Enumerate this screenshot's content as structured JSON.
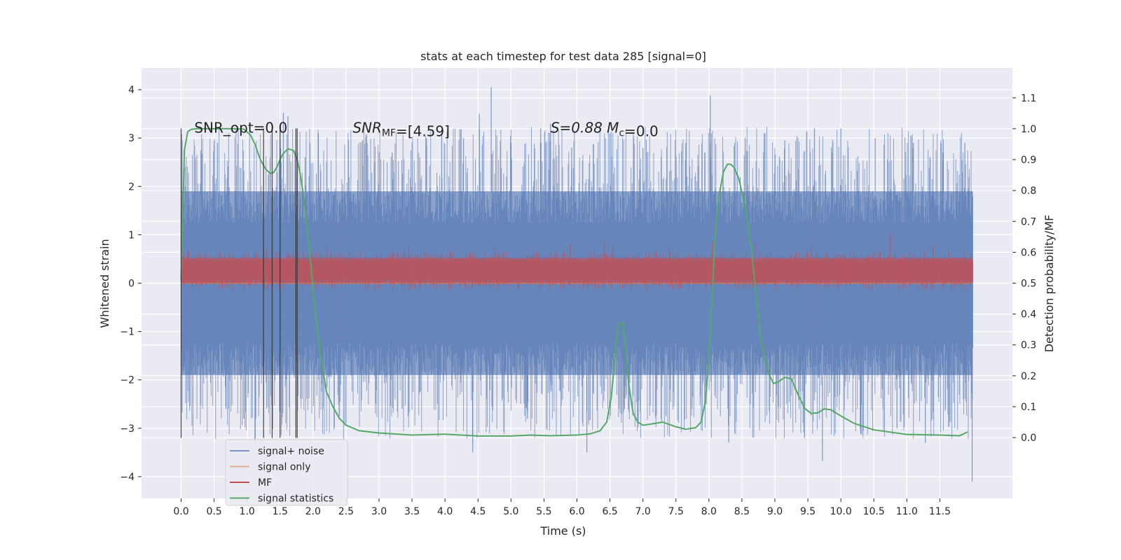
{
  "chart_data": {
    "type": "line",
    "title": "stats at each timestep for test data 285 [signal=0]",
    "xlabel": "Time (s)",
    "ylabel_left": "Whitened strain",
    "ylabel_right": "Detection probability/MF",
    "xlim": [
      -0.6,
      12.6
    ],
    "ylim_left": [
      -4.45,
      4.45
    ],
    "ylim_right": [
      -0.197,
      1.197
    ],
    "x_ticks": [
      0.0,
      0.5,
      1.0,
      1.5,
      2.0,
      2.5,
      3.0,
      3.5,
      4.0,
      4.5,
      5.0,
      5.5,
      6.0,
      6.5,
      7.0,
      7.5,
      8.0,
      8.5,
      9.0,
      9.5,
      10.0,
      10.5,
      11.0,
      11.5
    ],
    "x_tick_labels": [
      "0.0",
      "0.5",
      "1.0",
      "1.5",
      "2.0",
      "2.5",
      "3.0",
      "3.5",
      "4.0",
      "4.5",
      "5.0",
      "5.5",
      "6.0",
      "6.5",
      "7.0",
      "7.5",
      "8.0",
      "8.5",
      "9.0",
      "9.5",
      "10.0",
      "10.5",
      "11.0",
      "11.5"
    ],
    "y_left_ticks": [
      -4,
      -3,
      -2,
      -1,
      0,
      1,
      2,
      3,
      4
    ],
    "y_left_tick_labels": [
      "−4",
      "−3",
      "−2",
      "−1",
      "0",
      "1",
      "2",
      "3",
      "4"
    ],
    "y_right_ticks": [
      0.0,
      0.1,
      0.2,
      0.3,
      0.4,
      0.5,
      0.6,
      0.7,
      0.8,
      0.9,
      1.0,
      1.1
    ],
    "y_right_tick_labels": [
      "0.0",
      "0.1",
      "0.2",
      "0.3",
      "0.4",
      "0.5",
      "0.6",
      "0.7",
      "0.8",
      "0.9",
      "1.0",
      "1.1"
    ],
    "grid": true,
    "legend_position": "lower-left",
    "annotations": [
      {
        "text": "SNR_opt=0.0",
        "x": 0.2,
        "y": 3.2
      },
      {
        "text": "SNR_MF=[4.59]",
        "x": 2.6,
        "y": 3.2
      },
      {
        "text": "S=0.88  M_c=0.0",
        "x": 5.6,
        "y": 3.2
      }
    ],
    "vertical_markers": [
      {
        "x": 0.0,
        "y_range": [
          -3.2,
          3.2
        ]
      },
      {
        "x": 1.25,
        "y_range": [
          -3.2,
          3.2
        ]
      },
      {
        "x": 1.38,
        "y_range": [
          -3.2,
          3.2
        ]
      },
      {
        "x": 1.5,
        "y_range": [
          -3.2,
          3.2
        ]
      },
      {
        "x": 1.74,
        "y_range": [
          -3.2,
          3.2
        ]
      },
      {
        "x": 1.76,
        "y_range": [
          -3.2,
          3.2
        ]
      }
    ],
    "series": [
      {
        "name": "signal+ noise",
        "color": "#4c72b0",
        "axis": "left",
        "x_start": 0.0,
        "x_end": 12.0,
        "band_low": -1.9,
        "band_high": 1.9,
        "peaks": [
          {
            "x": 0.06,
            "y": 2.0
          },
          {
            "x": 0.3,
            "y": 2.75
          },
          {
            "x": 0.55,
            "y": 2.9
          },
          {
            "x": 0.68,
            "y": -2.6
          },
          {
            "x": 0.95,
            "y": -2.8
          },
          {
            "x": 1.12,
            "y": -3.3
          },
          {
            "x": 1.55,
            "y": 3.52
          },
          {
            "x": 1.62,
            "y": 3.45
          },
          {
            "x": 1.88,
            "y": 2.6
          },
          {
            "x": 2.08,
            "y": 3.1
          },
          {
            "x": 2.5,
            "y": -2.9
          },
          {
            "x": 2.75,
            "y": 2.95
          },
          {
            "x": 3.2,
            "y": 2.7
          },
          {
            "x": 3.35,
            "y": -2.6
          },
          {
            "x": 3.72,
            "y": 3.0
          },
          {
            "x": 3.95,
            "y": 3.1
          },
          {
            "x": 4.28,
            "y": 3.0
          },
          {
            "x": 4.42,
            "y": -3.5
          },
          {
            "x": 4.52,
            "y": 3.5
          },
          {
            "x": 4.7,
            "y": 4.05
          },
          {
            "x": 5.0,
            "y": 2.9
          },
          {
            "x": 5.25,
            "y": -2.8
          },
          {
            "x": 5.45,
            "y": 3.2
          },
          {
            "x": 5.6,
            "y": 3.3
          },
          {
            "x": 5.92,
            "y": 2.8
          },
          {
            "x": 6.15,
            "y": -3.5
          },
          {
            "x": 6.5,
            "y": 3.1
          },
          {
            "x": 6.72,
            "y": -2.6
          },
          {
            "x": 7.0,
            "y": 2.8
          },
          {
            "x": 7.35,
            "y": -2.75
          },
          {
            "x": 7.65,
            "y": 2.9
          },
          {
            "x": 8.02,
            "y": 3.88
          },
          {
            "x": 8.3,
            "y": -3.3
          },
          {
            "x": 8.55,
            "y": 3.0
          },
          {
            "x": 8.85,
            "y": 3.1
          },
          {
            "x": 9.15,
            "y": 2.95
          },
          {
            "x": 9.45,
            "y": -3.2
          },
          {
            "x": 9.6,
            "y": 3.2
          },
          {
            "x": 9.72,
            "y": -3.68
          },
          {
            "x": 10.0,
            "y": 3.2
          },
          {
            "x": 10.3,
            "y": -3.1
          },
          {
            "x": 10.52,
            "y": 3.0
          },
          {
            "x": 10.85,
            "y": -3.0
          },
          {
            "x": 11.1,
            "y": 2.9
          },
          {
            "x": 11.28,
            "y": -3.3
          },
          {
            "x": 11.55,
            "y": 2.7
          },
          {
            "x": 11.88,
            "y": 2.9
          },
          {
            "x": 11.99,
            "y": -4.1
          }
        ]
      },
      {
        "name": "signal only",
        "color": "#dd8452",
        "axis": "left",
        "x": [
          0.0,
          12.0
        ],
        "y": [
          0.0,
          0.0
        ]
      },
      {
        "name": "MF",
        "color": "#c44e52",
        "axis": "left",
        "x_start": 0.0,
        "x_end": 12.0,
        "band_low": 0.0,
        "band_high": 0.52,
        "peaks": [
          {
            "x": 0.1,
            "y": 0.68
          },
          {
            "x": 0.6,
            "y": 0.65
          },
          {
            "x": 1.3,
            "y": 0.7
          },
          {
            "x": 2.2,
            "y": 0.72
          },
          {
            "x": 3.45,
            "y": 0.75
          },
          {
            "x": 4.75,
            "y": 0.72
          },
          {
            "x": 5.9,
            "y": 0.82
          },
          {
            "x": 6.42,
            "y": 0.84
          },
          {
            "x": 6.55,
            "y": 0.78
          },
          {
            "x": 7.4,
            "y": 0.73
          },
          {
            "x": 8.05,
            "y": 0.85
          },
          {
            "x": 8.7,
            "y": 0.82
          },
          {
            "x": 9.55,
            "y": 0.74
          },
          {
            "x": 10.75,
            "y": 1.02
          },
          {
            "x": 11.4,
            "y": 0.78
          }
        ]
      },
      {
        "name": "signal statistics",
        "color": "#55a868",
        "axis": "right",
        "x": [
          0.0,
          0.05,
          0.1,
          0.15,
          0.25,
          0.4,
          0.6,
          0.8,
          0.95,
          1.05,
          1.12,
          1.2,
          1.28,
          1.35,
          1.4,
          1.45,
          1.5,
          1.55,
          1.62,
          1.7,
          1.76,
          1.8,
          1.85,
          1.9,
          1.95,
          2.0,
          2.05,
          2.1,
          2.15,
          2.2,
          2.3,
          2.4,
          2.5,
          2.7,
          3.0,
          3.5,
          4.0,
          4.5,
          5.0,
          5.3,
          5.6,
          6.0,
          6.2,
          6.35,
          6.45,
          6.52,
          6.58,
          6.62,
          6.65,
          6.7,
          6.73,
          6.78,
          6.85,
          6.92,
          7.0,
          7.1,
          7.3,
          7.5,
          7.65,
          7.8,
          7.88,
          7.95,
          8.02,
          8.08,
          8.15,
          8.22,
          8.28,
          8.33,
          8.38,
          8.45,
          8.55,
          8.65,
          8.72,
          8.8,
          8.9,
          8.98,
          9.05,
          9.15,
          9.25,
          9.35,
          9.45,
          9.55,
          9.65,
          9.75,
          9.85,
          10.0,
          10.2,
          10.5,
          11.0,
          11.5,
          11.8,
          11.92
        ],
        "y": [
          0.51,
          0.93,
          0.99,
          0.998,
          1.0,
          1.0,
          1.0,
          1.0,
          0.999,
          0.98,
          0.95,
          0.9,
          0.87,
          0.855,
          0.858,
          0.875,
          0.9,
          0.92,
          0.935,
          0.93,
          0.9,
          0.86,
          0.79,
          0.7,
          0.6,
          0.48,
          0.38,
          0.29,
          0.22,
          0.15,
          0.1,
          0.062,
          0.04,
          0.022,
          0.015,
          0.008,
          0.011,
          0.005,
          0.005,
          0.008,
          0.006,
          0.008,
          0.012,
          0.022,
          0.05,
          0.13,
          0.27,
          0.36,
          0.37,
          0.37,
          0.31,
          0.18,
          0.08,
          0.05,
          0.04,
          0.043,
          0.05,
          0.035,
          0.027,
          0.032,
          0.05,
          0.12,
          0.32,
          0.6,
          0.78,
          0.86,
          0.885,
          0.885,
          0.875,
          0.84,
          0.75,
          0.6,
          0.45,
          0.3,
          0.21,
          0.175,
          0.18,
          0.195,
          0.19,
          0.14,
          0.095,
          0.078,
          0.08,
          0.093,
          0.09,
          0.07,
          0.046,
          0.025,
          0.01,
          0.008,
          0.006,
          0.018
        ]
      }
    ]
  }
}
